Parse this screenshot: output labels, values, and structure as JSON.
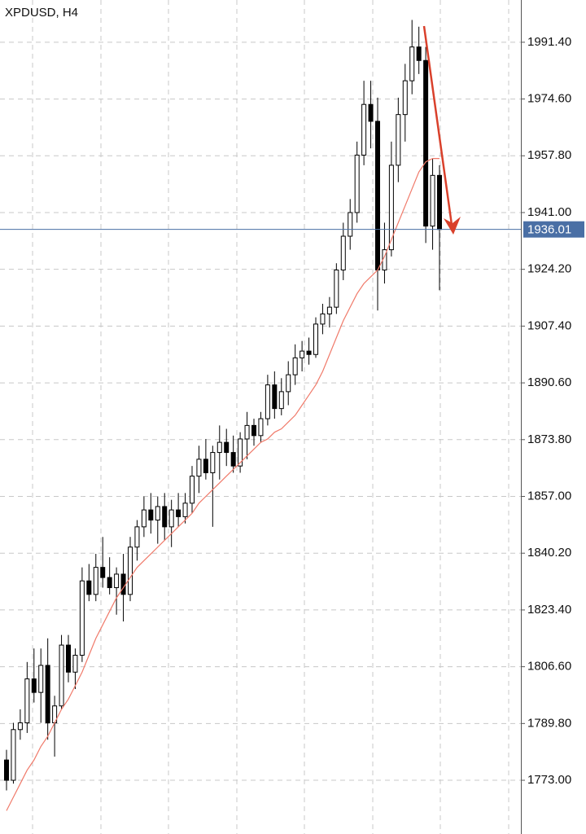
{
  "chart_data": {
    "type": "candlestick",
    "title": "XPDUSD, H4",
    "open": [
      1779,
      1773,
      1788,
      1790,
      1803,
      1799,
      1807,
      1790,
      1795,
      1813,
      1805,
      1810,
      1832,
      1828,
      1836,
      1833,
      1830,
      1834,
      1828,
      1842,
      1848,
      1853,
      1850,
      1854,
      1848,
      1853,
      1851,
      1855,
      1863,
      1868,
      1864,
      1870,
      1873,
      1870,
      1866,
      1874,
      1878,
      1875,
      1880,
      1890,
      1883,
      1888,
      1893,
      1898,
      1900,
      1899,
      1908,
      1911,
      1913,
      1924,
      1934,
      1941,
      1958,
      1973,
      1968,
      1924,
      1930,
      1955,
      1970,
      1980,
      1990,
      1986,
      1937,
      1952
    ],
    "high": [
      1782,
      1790,
      1794,
      1808,
      1812,
      1812,
      1815,
      1798,
      1816,
      1816,
      1812,
      1836,
      1837,
      1840,
      1845,
      1839,
      1836,
      1840,
      1845,
      1850,
      1857,
      1858,
      1857,
      1858,
      1856,
      1858,
      1858,
      1866,
      1872,
      1874,
      1872,
      1878,
      1877,
      1875,
      1876,
      1882,
      1880,
      1882,
      1893,
      1894,
      1892,
      1897,
      1902,
      1903,
      1904,
      1910,
      1914,
      1916,
      1926,
      1938,
      1945,
      1962,
      1980,
      1980,
      1975,
      1938,
      1962,
      1975,
      1985,
      1998,
      1996,
      1990,
      1957,
      1955
    ],
    "low": [
      1770,
      1772,
      1785,
      1787,
      1796,
      1790,
      1785,
      1780,
      1794,
      1802,
      1800,
      1808,
      1826,
      1826,
      1830,
      1828,
      1822,
      1820,
      1826,
      1838,
      1845,
      1846,
      1843,
      1844,
      1842,
      1848,
      1849,
      1852,
      1858,
      1862,
      1848,
      1862,
      1866,
      1864,
      1864,
      1868,
      1872,
      1873,
      1878,
      1880,
      1881,
      1884,
      1890,
      1894,
      1896,
      1898,
      1905,
      1907,
      1911,
      1921,
      1930,
      1938,
      1955,
      1960,
      1912,
      1920,
      1928,
      1950,
      1962,
      1976,
      1982,
      1932,
      1930,
      1918
    ],
    "close": [
      1773,
      1788,
      1790,
      1803,
      1799,
      1807,
      1790,
      1795,
      1813,
      1805,
      1810,
      1832,
      1828,
      1836,
      1833,
      1830,
      1834,
      1828,
      1842,
      1848,
      1853,
      1850,
      1854,
      1848,
      1853,
      1851,
      1855,
      1863,
      1868,
      1864,
      1870,
      1873,
      1870,
      1866,
      1874,
      1878,
      1875,
      1880,
      1890,
      1883,
      1888,
      1893,
      1898,
      1900,
      1899,
      1908,
      1911,
      1913,
      1924,
      1934,
      1941,
      1958,
      1973,
      1968,
      1924,
      1930,
      1955,
      1970,
      1980,
      1990,
      1986,
      1937,
      1952,
      1936
    ],
    "up_color": "#ffffff",
    "down_color": "#000000",
    "ma": {
      "color": "#f07a6a",
      "values": [
        1764,
        1768,
        1772,
        1776,
        1779,
        1783,
        1786,
        1790,
        1794,
        1797,
        1801,
        1805,
        1810,
        1815,
        1819,
        1823,
        1827,
        1830,
        1833,
        1836,
        1838,
        1840,
        1842,
        1844,
        1846,
        1848,
        1850,
        1852,
        1855,
        1857,
        1859,
        1861,
        1863,
        1865,
        1867,
        1869,
        1871,
        1873,
        1874,
        1876,
        1877,
        1879,
        1881,
        1884,
        1887,
        1890,
        1894,
        1899,
        1904,
        1909,
        1913,
        1917,
        1920,
        1922,
        1924,
        1928,
        1933,
        1938,
        1943,
        1948,
        1953,
        1956,
        1957,
        1957
      ]
    },
    "last_price": 1936.01,
    "last_price_color": "#4a6fa5",
    "ylim": [
      1757.1,
      2003.9
    ],
    "yticks": [
      {
        "value": 1773,
        "label": "1773.00"
      },
      {
        "value": 1789.8,
        "label": "1789.80"
      },
      {
        "value": 1806.6,
        "label": "1806.60"
      },
      {
        "value": 1823.4,
        "label": "1823.40"
      },
      {
        "value": 1840.2,
        "label": "1840.20"
      },
      {
        "value": 1857,
        "label": "1857.00"
      },
      {
        "value": 1873.8,
        "label": "1873.80"
      },
      {
        "value": 1890.6,
        "label": "1890.60"
      },
      {
        "value": 1907.4,
        "label": "1907.40"
      },
      {
        "value": 1924.2,
        "label": "1924.20"
      },
      {
        "value": 1941,
        "label": "1941.00"
      },
      {
        "value": 1957.8,
        "label": "1957.80"
      },
      {
        "value": 1974.6,
        "label": "1974.60"
      },
      {
        "value": 1991.4,
        "label": "1991.40"
      }
    ],
    "grid": true
  }
}
